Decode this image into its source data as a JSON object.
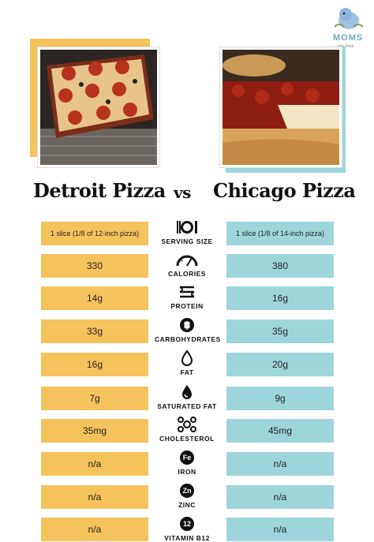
{
  "logo": {
    "text": "MOMS",
    "subtext": "who think"
  },
  "titles": {
    "left": "Detroit Pizza",
    "vs": "vs",
    "right": "Chicago Pizza"
  },
  "colors": {
    "detroit": "#f5c35c",
    "chicago": "#9dd5da"
  },
  "rows": [
    {
      "label": "SERVING SIZE",
      "icon": "plate-cutlery-icon",
      "detroit": "1 slice (1/8 of 12-inch pizza)",
      "chicago": "1 slice (1/8 of 14-inch pizza)"
    },
    {
      "label": "CALORIES",
      "icon": "gauge-icon",
      "detroit": "330",
      "chicago": "380"
    },
    {
      "label": "PROTEIN",
      "icon": "protein-icon",
      "detroit": "14g",
      "chicago": "16g"
    },
    {
      "label": "CARBOHYDRATES",
      "icon": "wheat-icon",
      "detroit": "33g",
      "chicago": "35g"
    },
    {
      "label": "FAT",
      "icon": "drop-icon",
      "detroit": "16g",
      "chicago": "20g"
    },
    {
      "label": "SATURATED FAT",
      "icon": "drop-filled-icon",
      "detroit": "7g",
      "chicago": "9g"
    },
    {
      "label": "CHOLESTEROL",
      "icon": "molecule-icon",
      "detroit": "35mg",
      "chicago": "45mg"
    },
    {
      "label": "IRON",
      "icon": "Fe",
      "detroit": "n/a",
      "chicago": "n/a"
    },
    {
      "label": "ZINC",
      "icon": "Zn",
      "detroit": "n/a",
      "chicago": "n/a"
    },
    {
      "label": "VITAMIN B12",
      "icon": "12",
      "detroit": "n/a",
      "chicago": "n/a"
    }
  ]
}
